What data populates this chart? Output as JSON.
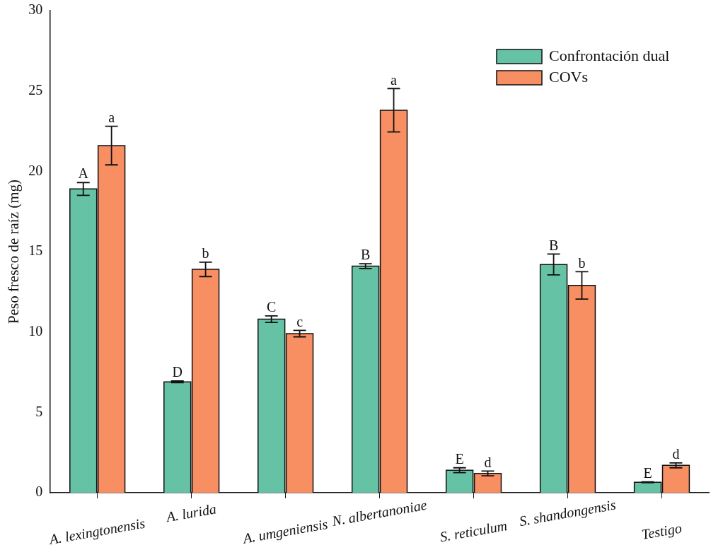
{
  "chart_data": {
    "type": "bar",
    "ylabel": "Peso fresco de raíz (mg)",
    "categories": [
      "A. lexingtonensis",
      "A. lurida",
      "A. umgeniensis",
      "N. albertanoniae",
      "S. reticulum",
      "S. shandongensis",
      "Testigo"
    ],
    "series": [
      {
        "name": "Confrontación dual",
        "color": "#66c2a5",
        "values": [
          18.9,
          6.9,
          10.8,
          14.1,
          1.4,
          14.2,
          0.65
        ],
        "errors": [
          0.4,
          0.05,
          0.2,
          0.15,
          0.15,
          0.65,
          0.03
        ]
      },
      {
        "name": "COVs",
        "color": "#f78f62",
        "values": [
          21.6,
          13.9,
          9.9,
          23.8,
          1.2,
          12.9,
          1.7
        ],
        "errors": [
          1.2,
          0.45,
          0.2,
          1.35,
          0.15,
          0.85,
          0.15
        ]
      }
    ],
    "ylim": [
      0,
      30
    ],
    "yticks": [
      0,
      5,
      10,
      15,
      20,
      25,
      30
    ],
    "grid": false,
    "legend": "top right",
    "annotations": [
      "A",
      "a",
      "D",
      "b",
      "C",
      "c",
      "B",
      "a",
      "E",
      "d",
      "B",
      "b",
      "E",
      "d"
    ]
  }
}
